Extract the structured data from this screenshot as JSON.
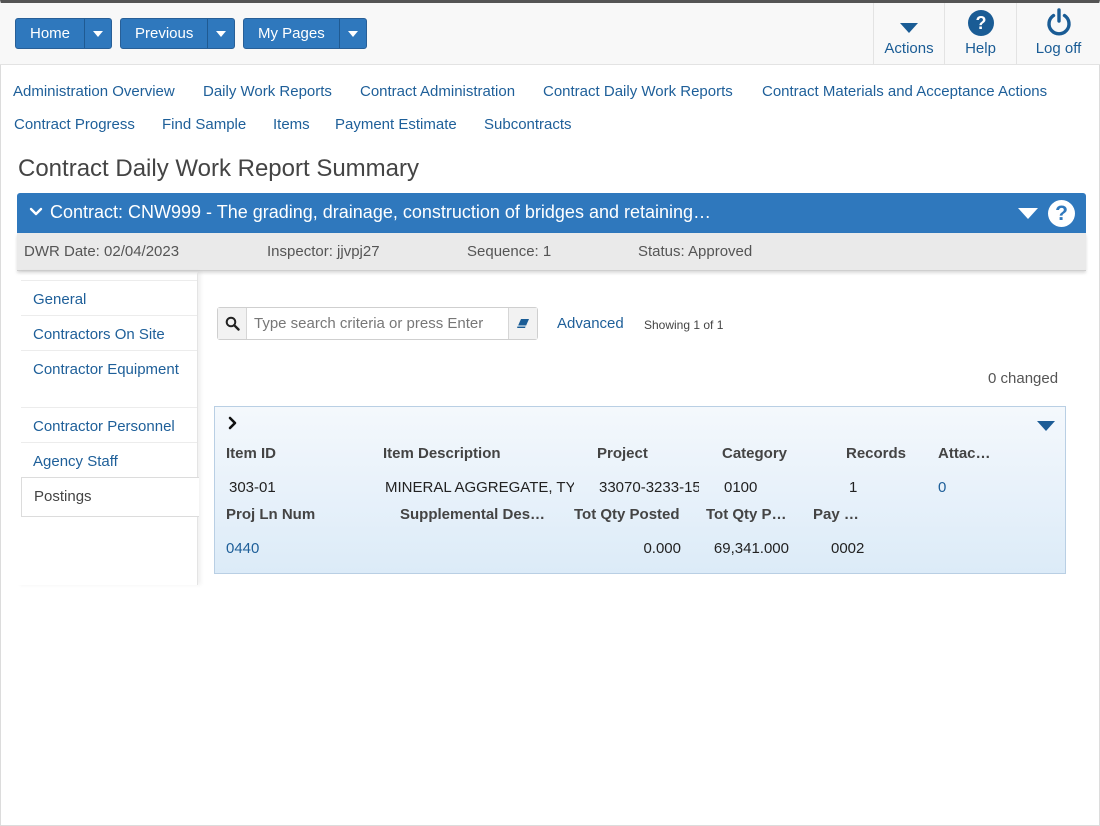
{
  "toolbar": {
    "home_label": "Home",
    "previous_label": "Previous",
    "mypages_label": "My Pages",
    "actions_label": "Actions",
    "help_label": "Help",
    "logoff_label": "Log off"
  },
  "nav": {
    "links": [
      "Administration Overview",
      "Daily Work Reports",
      "Contract Administration",
      "Contract Daily Work Reports",
      "Contract Materials and Acceptance Actions",
      "Contract Progress",
      "Find Sample",
      "Items",
      "Payment Estimate",
      "Subcontracts"
    ]
  },
  "page": {
    "title": "Contract Daily Work Report Summary"
  },
  "contract": {
    "header": "Contract: CNW999 - The grading, drainage, construction of bridges and retaining…",
    "help_symbol": "?",
    "dwr_date": "DWR Date: 02/04/2023",
    "inspector": "Inspector: jjvpj27",
    "sequence": "Sequence: 1",
    "status": "Status: Approved"
  },
  "sidemenu": {
    "items": [
      "General",
      "Contractors On Site",
      "Contractor Equipment",
      "Contractor Personnel",
      "Agency Staff",
      "Postings"
    ],
    "active": "Postings"
  },
  "search": {
    "placeholder": "Type search criteria or press Enter",
    "value": "",
    "advanced_label": "Advanced",
    "showing": "Showing 1 of 1",
    "changed": "0 changed"
  },
  "record": {
    "headers_row1": [
      "Item ID",
      "Item Description",
      "Project",
      "Category",
      "Records",
      "Attac…"
    ],
    "values_row1": [
      "303-01",
      "MINERAL AGGREGATE, TY",
      "33070-3233-15",
      "0100",
      "1",
      "0"
    ],
    "headers_row2": [
      "Proj Ln Num",
      "Supplemental Des…",
      "Tot Qty Posted",
      "Tot Qty P…",
      "Pay …"
    ],
    "values_row2": [
      "0440",
      "",
      "0.000",
      "69,341.000",
      "0002"
    ]
  },
  "colors": {
    "primary": "#2f78bd",
    "link": "#1e5f99",
    "icon": "#1a5c95"
  },
  "icons": {
    "actions": "caret-down-icon",
    "help": "question-circle-icon",
    "logoff": "power-icon",
    "search": "search-icon",
    "clear": "eraser-icon"
  }
}
